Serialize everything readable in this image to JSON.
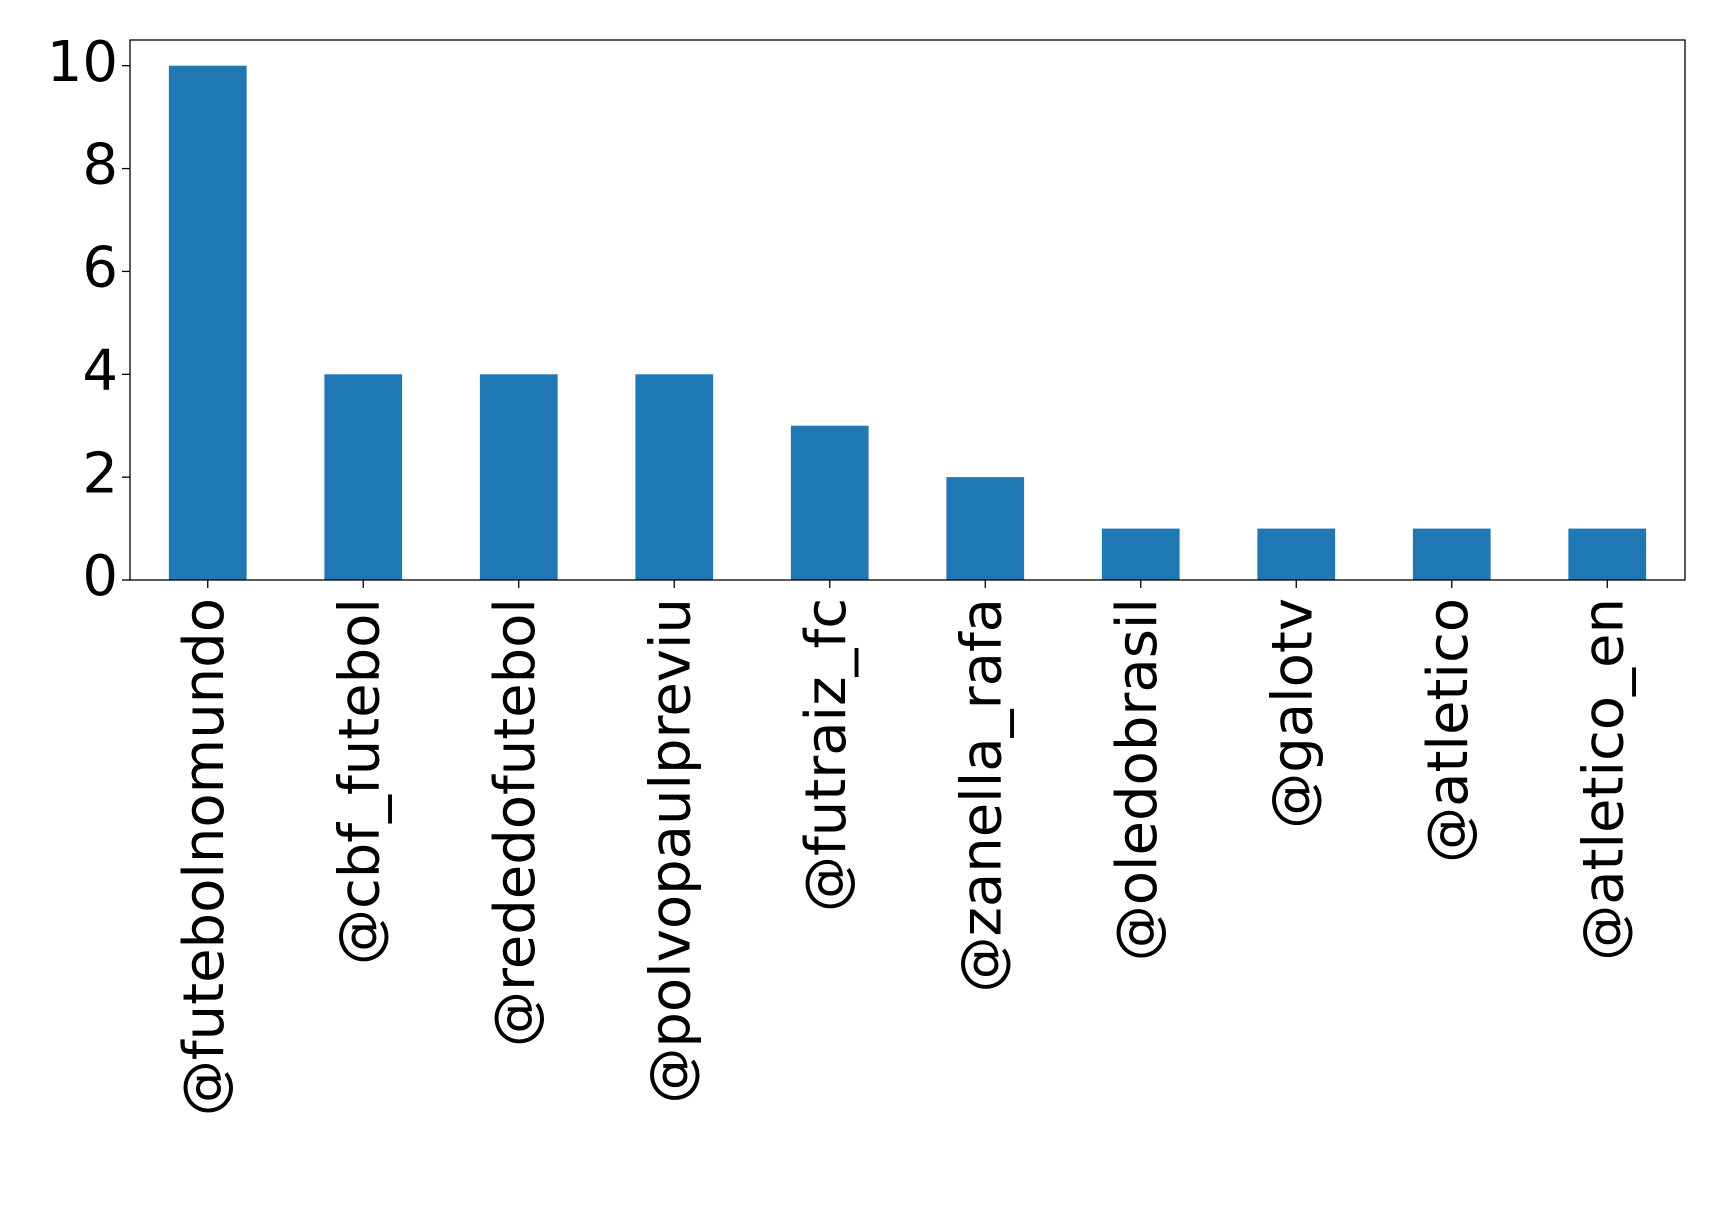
{
  "chart_data": {
    "type": "bar",
    "categories": [
      "@futebolnomundo",
      "@cbf_futebol",
      "@rededofutebol",
      "@polvopaulpreviu",
      "@futraiz_fc",
      "@zanella_rafa",
      "@oledobrasil",
      "@galotv",
      "@atletico",
      "@atletico_en"
    ],
    "values": [
      10,
      4,
      4,
      4,
      3,
      2,
      1,
      1,
      1,
      1
    ],
    "ylim": [
      0,
      10.5
    ],
    "yticks": [
      0,
      2,
      4,
      6,
      8,
      10
    ],
    "title": "",
    "xlabel": "",
    "ylabel": "",
    "grid": false,
    "colors": {
      "bar": "#1f77b4"
    }
  }
}
